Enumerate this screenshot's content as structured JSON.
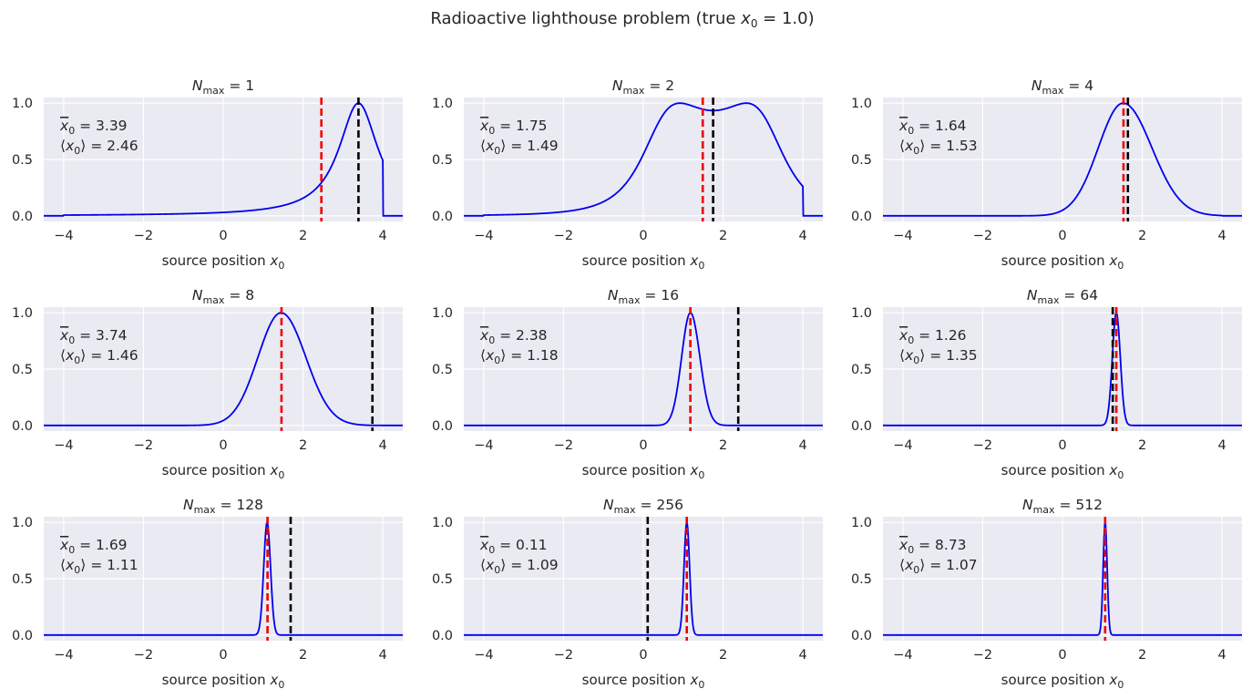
{
  "figure": {
    "title_prefix": "Radioactive lighthouse problem (true ",
    "title_var": "x",
    "title_sub": "0",
    "title_suffix": " = 1.0)"
  },
  "axes_labels": {
    "xlabel_text": "source position ",
    "xlabel_var": "x",
    "xlabel_sub": "0",
    "title_var": "N",
    "title_sub": "max",
    "title_eq": " = ",
    "mean_var": "x",
    "mean_sub": "0",
    "mean_eq": " = ",
    "median_open": "⟨",
    "median_var": "x",
    "median_sub": "0",
    "median_close": "⟩ = "
  },
  "chart_data": [
    {
      "type": "line",
      "n_max": "1",
      "mean": "3.39",
      "median": "2.46",
      "mean_x": 3.39,
      "median_x": 2.46,
      "xlim": [
        -4.5,
        4.5
      ],
      "ylim": [
        -0.05,
        1.05
      ],
      "xticks": [
        "−4",
        "−2",
        "0",
        "2",
        "4"
      ],
      "yticks": [
        "0.0",
        "0.5",
        "1.0"
      ],
      "posterior": {
        "kind": "cauchy1",
        "center": 3.39,
        "width": 0.6,
        "support": [
          -4,
          4
        ]
      }
    },
    {
      "type": "line",
      "n_max": "2",
      "mean": "1.75",
      "median": "1.49",
      "mean_x": 1.75,
      "median_x": 1.49,
      "xlim": [
        -4.5,
        4.5
      ],
      "ylim": [
        -0.05,
        1.05
      ],
      "xticks": [
        "−4",
        "−2",
        "0",
        "2",
        "4"
      ],
      "yticks": [
        "0.0",
        "0.5",
        "1.0"
      ],
      "posterior": {
        "kind": "cauchy2",
        "centers": [
          0.45,
          3.05
        ],
        "width": 1.0,
        "support": [
          -4,
          4
        ]
      }
    },
    {
      "type": "line",
      "n_max": "4",
      "mean": "1.64",
      "median": "1.53",
      "mean_x": 1.64,
      "median_x": 1.53,
      "xlim": [
        -4.5,
        4.5
      ],
      "ylim": [
        -0.05,
        1.05
      ],
      "xticks": [
        "−4",
        "−2",
        "0",
        "2",
        "4"
      ],
      "yticks": [
        "0.0",
        "0.5",
        "1.0"
      ],
      "posterior": {
        "kind": "peak",
        "center": 1.52,
        "sigma_left": 0.62,
        "sigma_right": 0.72,
        "support": [
          -4,
          4
        ]
      }
    },
    {
      "type": "line",
      "n_max": "8",
      "mean": "3.74",
      "median": "1.46",
      "mean_x": 3.74,
      "median_x": 1.46,
      "xlim": [
        -4.5,
        4.5
      ],
      "ylim": [
        -0.05,
        1.05
      ],
      "xticks": [
        "−4",
        "−2",
        "0",
        "2",
        "4"
      ],
      "yticks": [
        "0.0",
        "0.5",
        "1.0"
      ],
      "posterior": {
        "kind": "peak",
        "center": 1.45,
        "sigma_left": 0.58,
        "sigma_right": 0.62,
        "support": [
          -4,
          4
        ]
      }
    },
    {
      "type": "line",
      "n_max": "16",
      "mean": "2.38",
      "median": "1.18",
      "mean_x": 2.38,
      "median_x": 1.18,
      "xlim": [
        -4.5,
        4.5
      ],
      "ylim": [
        -0.05,
        1.05
      ],
      "xticks": [
        "−4",
        "−2",
        "0",
        "2",
        "4"
      ],
      "yticks": [
        "0.0",
        "0.5",
        "1.0"
      ],
      "posterior": {
        "kind": "peak",
        "center": 1.18,
        "sigma_left": 0.22,
        "sigma_right": 0.24,
        "support": [
          -4,
          4
        ]
      }
    },
    {
      "type": "line",
      "n_max": "64",
      "mean": "1.26",
      "median": "1.35",
      "mean_x": 1.26,
      "median_x": 1.35,
      "xlim": [
        -4.5,
        4.5
      ],
      "ylim": [
        -0.05,
        1.05
      ],
      "xticks": [
        "−4",
        "−2",
        "0",
        "2",
        "4"
      ],
      "yticks": [
        "0.0",
        "0.5",
        "1.0"
      ],
      "posterior": {
        "kind": "peak",
        "center": 1.35,
        "sigma_left": 0.1,
        "sigma_right": 0.1,
        "support": [
          -4,
          4
        ]
      }
    },
    {
      "type": "line",
      "n_max": "128",
      "mean": "1.69",
      "median": "1.11",
      "mean_x": 1.69,
      "median_x": 1.11,
      "xlim": [
        -4.5,
        4.5
      ],
      "ylim": [
        -0.05,
        1.05
      ],
      "xticks": [
        "−4",
        "−2",
        "0",
        "2",
        "4"
      ],
      "yticks": [
        "0.0",
        "0.5",
        "1.0"
      ],
      "posterior": {
        "kind": "peak",
        "center": 1.1,
        "sigma_left": 0.085,
        "sigma_right": 0.085,
        "support": [
          -4,
          4
        ]
      }
    },
    {
      "type": "line",
      "n_max": "256",
      "mean": "0.11",
      "median": "1.09",
      "mean_x": 0.11,
      "median_x": 1.09,
      "xlim": [
        -4.5,
        4.5
      ],
      "ylim": [
        -0.05,
        1.05
      ],
      "xticks": [
        "−4",
        "−2",
        "0",
        "2",
        "4"
      ],
      "yticks": [
        "0.0",
        "0.5",
        "1.0"
      ],
      "posterior": {
        "kind": "peak",
        "center": 1.09,
        "sigma_left": 0.07,
        "sigma_right": 0.07,
        "support": [
          -4,
          4
        ]
      }
    },
    {
      "type": "line",
      "n_max": "512",
      "mean": "8.73",
      "median": "1.07",
      "mean_x": 8.73,
      "median_x": 1.07,
      "xlim": [
        -4.5,
        4.5
      ],
      "ylim": [
        -0.05,
        1.05
      ],
      "xticks": [
        "−4",
        "−2",
        "0",
        "2",
        "4"
      ],
      "yticks": [
        "0.0",
        "0.5",
        "1.0"
      ],
      "posterior": {
        "kind": "peak",
        "center": 1.07,
        "sigma_left": 0.05,
        "sigma_right": 0.05,
        "support": [
          -4,
          4
        ]
      }
    }
  ],
  "colors": {
    "posterior": "#0000ee",
    "median_line": "#ee0000",
    "mean_line": "#000000",
    "axes_bg": "#eaeaf2",
    "grid": "#ffffff",
    "text": "#262626"
  }
}
